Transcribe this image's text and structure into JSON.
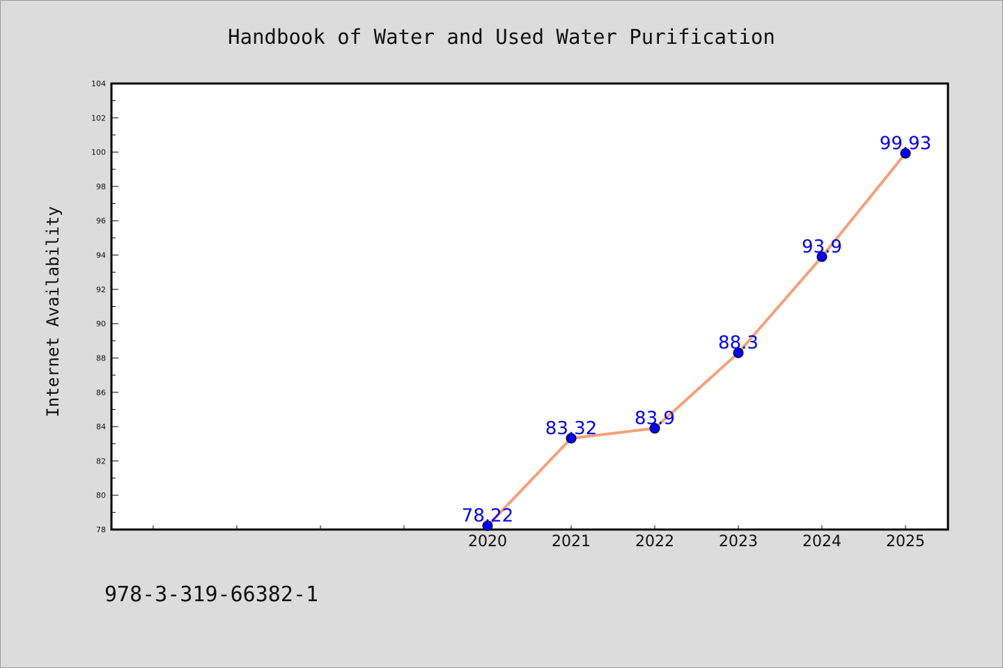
{
  "chart_data": {
    "type": "line",
    "title": "Handbook of Water and Used Water Purification",
    "ylabel": "Internet Availability",
    "xlabel": "",
    "x": [
      "2020",
      "2021",
      "2022",
      "2023",
      "2024",
      "2025"
    ],
    "series": [
      {
        "values": [
          78.22,
          83.32,
          83.9,
          88.3,
          93.9,
          99.93
        ],
        "labels": [
          "78.22",
          "83.32",
          "83.9",
          "88.3",
          "93.9",
          "99.93"
        ],
        "line_color": "#f4a07a",
        "marker_color": "#0000ee"
      }
    ],
    "ylim": [
      78,
      104
    ],
    "yticks": [
      78,
      80,
      82,
      84,
      86,
      88,
      90,
      92,
      94,
      96,
      98,
      100,
      102,
      104
    ],
    "grid": false,
    "legend": "none"
  },
  "footer": {
    "isbn": "978-3-319-66382-1"
  },
  "colors": {
    "background": "#dcdcdc",
    "plot_background": "#ffffff"
  }
}
